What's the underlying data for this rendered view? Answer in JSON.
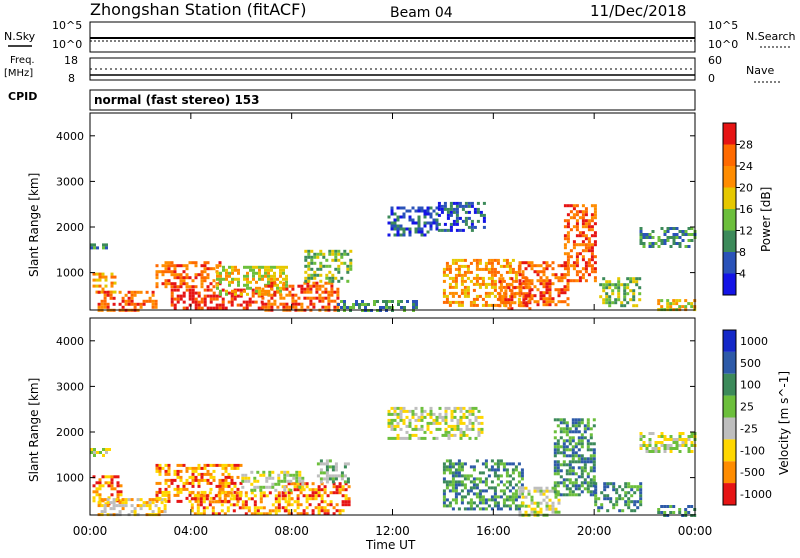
{
  "header": {
    "station": "Zhongshan Station (fitACF)",
    "beam": "Beam 04",
    "date": "11/Dec/2018"
  },
  "params": {
    "nsky_label": "N.Sky",
    "nsky_hi": "10^5",
    "nsky_lo": "10^0",
    "nsearch_label": "N.Search",
    "nsearch_hi": "10^5",
    "nsearch_lo": "10^0",
    "freq_label1": "Freq.",
    "freq_label2": "[MHz]",
    "freq_hi": "18",
    "freq_lo": "8",
    "nave_label": "Nave",
    "nave_hi": "60",
    "nave_lo": "0",
    "cpid_label": "CPID",
    "cpid_text": "normal (fast stereo) 153"
  },
  "time_axis": {
    "label": "Time UT",
    "ticks": [
      "00:00",
      "04:00",
      "08:00",
      "12:00",
      "16:00",
      "20:00",
      "00:00"
    ]
  },
  "range_axis": {
    "label": "Slant Range [km]",
    "ticks": [
      "1000",
      "2000",
      "3000",
      "4000"
    ]
  },
  "power_colorbar": {
    "label": "Power [dB]",
    "ticks": [
      "4",
      "8",
      "12",
      "16",
      "20",
      "24",
      "28"
    ],
    "colors": [
      "#1414e6",
      "#2a52b8",
      "#3c8a5a",
      "#6cbf3c",
      "#e6c800",
      "#ff8c00",
      "#ff6a00",
      "#e61414"
    ]
  },
  "velocity_colorbar": {
    "label": "Velocity [m s^-1]",
    "ticks": [
      "1000",
      "500",
      "100",
      "25",
      "-25",
      "-100",
      "-500",
      "-1000"
    ],
    "colors": [
      "#1428c8",
      "#2d5aa8",
      "#3c8a5a",
      "#6cbf3c",
      "#bebebe",
      "#ffd700",
      "#ff8c00",
      "#e61414"
    ]
  },
  "chart_data": [
    {
      "type": "heatmap",
      "name": "power",
      "x_unit": "hours UT",
      "xlim": [
        0,
        24
      ],
      "ylim": [
        180,
        4500
      ],
      "ylabel": "Slant Range [km]",
      "zlabel": "Power [dB]",
      "regions": [
        {
          "t0": 0.0,
          "t1": 0.6,
          "r0": 1520,
          "r1": 1640,
          "level": 2
        },
        {
          "t0": 0.1,
          "t1": 1.0,
          "r0": 580,
          "r1": 1000,
          "level": 5
        },
        {
          "t0": 0.3,
          "t1": 2.6,
          "r0": 200,
          "r1": 600,
          "level": 6
        },
        {
          "t0": 2.6,
          "t1": 5.2,
          "r0": 700,
          "r1": 1250,
          "level": 6
        },
        {
          "t0": 3.2,
          "t1": 6.8,
          "r0": 200,
          "r1": 650,
          "level": 7
        },
        {
          "t0": 5.0,
          "t1": 7.8,
          "r0": 500,
          "r1": 1150,
          "level": 4
        },
        {
          "t0": 6.8,
          "t1": 9.8,
          "r0": 200,
          "r1": 800,
          "level": 6
        },
        {
          "t0": 8.5,
          "t1": 10.4,
          "r0": 800,
          "r1": 1500,
          "level": 3
        },
        {
          "t0": 9.8,
          "t1": 13.0,
          "r0": 200,
          "r1": 400,
          "level": 2
        },
        {
          "t0": 11.8,
          "t1": 13.8,
          "r0": 1800,
          "r1": 2450,
          "level": 1
        },
        {
          "t0": 13.8,
          "t1": 15.6,
          "r0": 1900,
          "r1": 2550,
          "level": 1
        },
        {
          "t0": 14.0,
          "t1": 17.0,
          "r0": 300,
          "r1": 1300,
          "level": 5
        },
        {
          "t0": 16.2,
          "t1": 17.4,
          "r0": 200,
          "r1": 900,
          "level": 6
        },
        {
          "t0": 17.0,
          "t1": 19.0,
          "r0": 300,
          "r1": 1250,
          "level": 6
        },
        {
          "t0": 18.8,
          "t1": 20.0,
          "r0": 800,
          "r1": 2500,
          "level": 6
        },
        {
          "t0": 20.2,
          "t1": 21.8,
          "r0": 300,
          "r1": 900,
          "level": 3
        },
        {
          "t0": 21.8,
          "t1": 24.0,
          "r0": 1550,
          "r1": 2000,
          "level": 2
        },
        {
          "t0": 22.5,
          "t1": 24.0,
          "r0": 200,
          "r1": 420,
          "level": 4
        }
      ]
    },
    {
      "type": "heatmap",
      "name": "velocity",
      "x_unit": "hours UT",
      "xlim": [
        0,
        24
      ],
      "ylim": [
        180,
        4500
      ],
      "ylabel": "Slant Range [km]",
      "zlabel": "Velocity [m s^-1]",
      "regions": [
        {
          "t0": 0.0,
          "t1": 0.8,
          "r0": 1500,
          "r1": 1650,
          "level": 4
        },
        {
          "t0": 0.1,
          "t1": 1.2,
          "r0": 400,
          "r1": 1050,
          "level": 6
        },
        {
          "t0": 0.3,
          "t1": 3.0,
          "r0": 200,
          "r1": 550,
          "level": 5
        },
        {
          "t0": 2.6,
          "t1": 6.0,
          "r0": 500,
          "r1": 1300,
          "level": 6
        },
        {
          "t0": 4.0,
          "t1": 8.0,
          "r0": 200,
          "r1": 700,
          "level": 6
        },
        {
          "t0": 7.6,
          "t1": 10.3,
          "r0": 200,
          "r1": 900,
          "level": 6
        },
        {
          "t0": 6.0,
          "t1": 8.4,
          "r0": 700,
          "r1": 1150,
          "level": 4
        },
        {
          "t0": 9.0,
          "t1": 10.2,
          "r0": 900,
          "r1": 1400,
          "level": 3
        },
        {
          "t0": 11.8,
          "t1": 15.6,
          "r0": 1850,
          "r1": 2550,
          "level": 4
        },
        {
          "t0": 14.0,
          "t1": 17.2,
          "r0": 300,
          "r1": 1400,
          "level": 2
        },
        {
          "t0": 17.0,
          "t1": 18.6,
          "r0": 200,
          "r1": 800,
          "level": 4
        },
        {
          "t0": 18.4,
          "t1": 20.0,
          "r0": 600,
          "r1": 2300,
          "level": 2
        },
        {
          "t0": 20.0,
          "t1": 21.8,
          "r0": 300,
          "r1": 900,
          "level": 2
        },
        {
          "t0": 21.8,
          "t1": 24.0,
          "r0": 1550,
          "r1": 2000,
          "level": 4
        },
        {
          "t0": 22.5,
          "t1": 24.0,
          "r0": 200,
          "r1": 400,
          "level": 2
        }
      ]
    }
  ]
}
